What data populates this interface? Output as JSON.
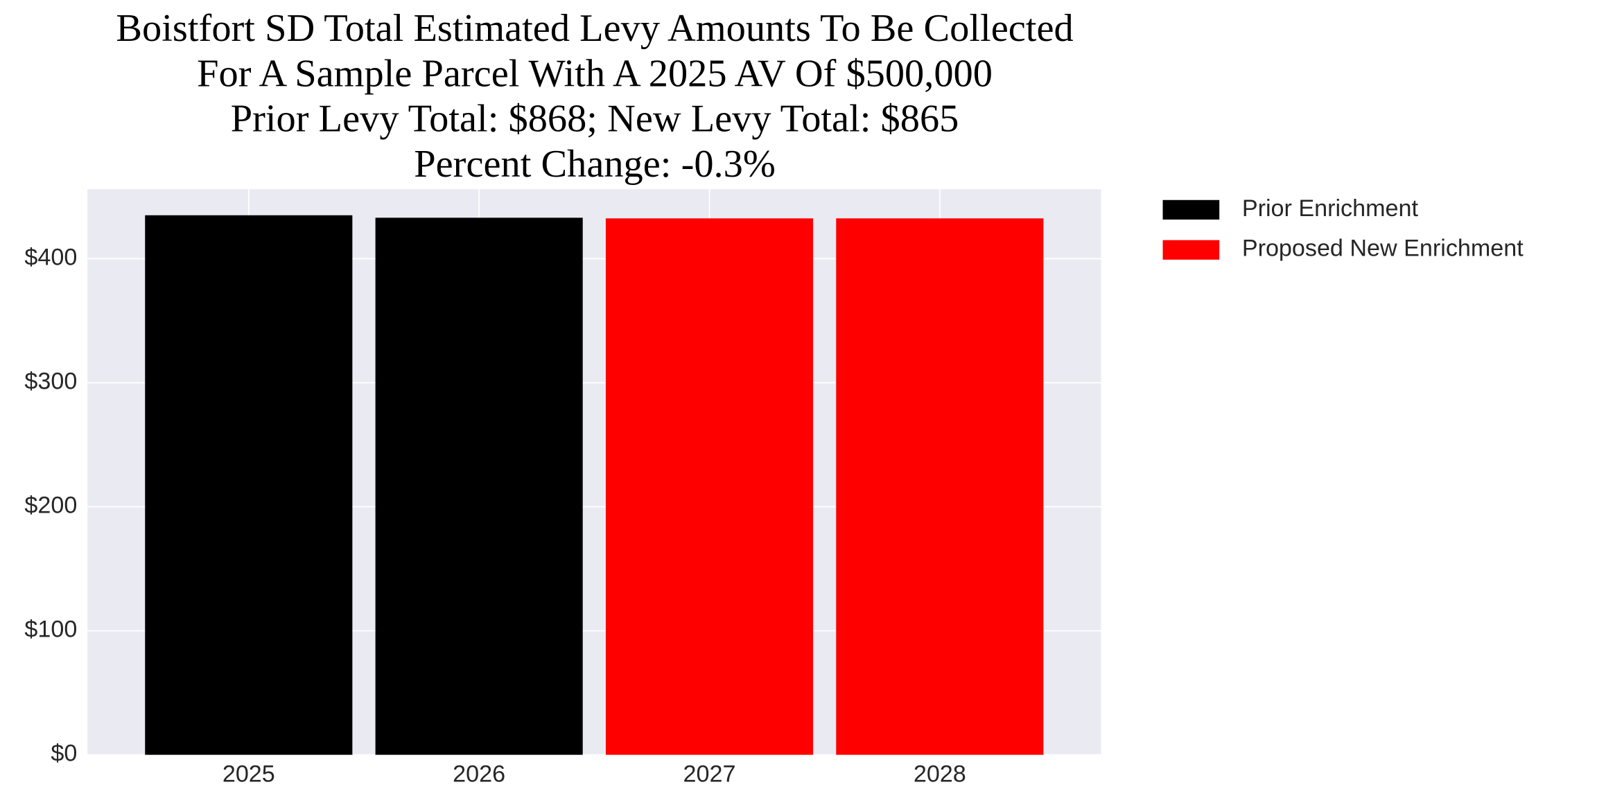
{
  "chart_data": {
    "type": "bar",
    "title": [
      "Boistfort SD Total Estimated Levy Amounts To Be Collected",
      "For A Sample Parcel With A 2025 AV Of $500,000",
      "Prior Levy Total:  $868; New Levy Total: $865",
      "Percent Change: -0.3%"
    ],
    "categories": [
      "2025",
      "2026",
      "2027",
      "2028"
    ],
    "series": [
      {
        "name": "Prior Enrichment",
        "color": "#000000",
        "values": [
          435,
          433,
          null,
          null
        ]
      },
      {
        "name": "Proposed New Enrichment",
        "color": "#ff0000",
        "values": [
          null,
          null,
          432.5,
          432.5
        ]
      }
    ],
    "ylim": [
      0,
      456
    ],
    "yticks": [
      {
        "value": 0,
        "label": "$0"
      },
      {
        "value": 100,
        "label": "$100"
      },
      {
        "value": 200,
        "label": "$200"
      },
      {
        "value": 300,
        "label": "$300"
      },
      {
        "value": 400,
        "label": "$400"
      }
    ],
    "grid": true,
    "legend": "outside-right-top",
    "background": "#eaeaf2"
  }
}
